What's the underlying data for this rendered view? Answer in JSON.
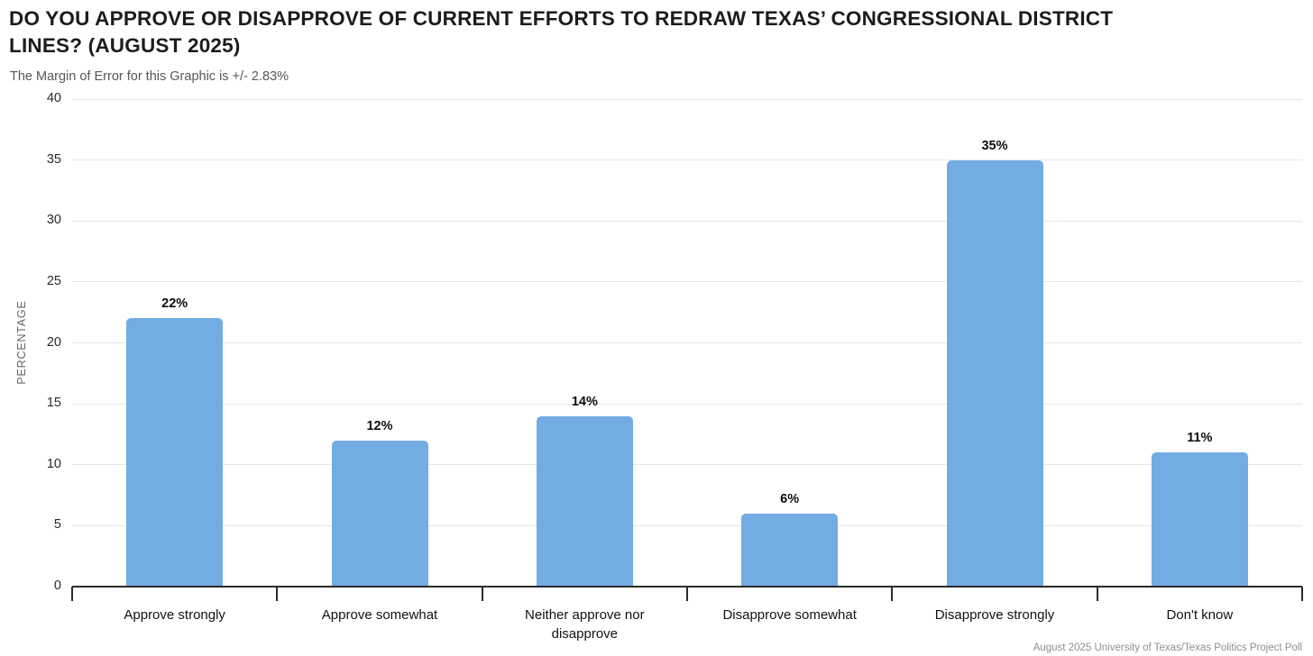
{
  "header": {
    "title": "DO YOU APPROVE OR DISAPPROVE OF CURRENT EFFORTS TO REDRAW TEXAS’ CONGRESSIONAL DISTRICT LINES? (AUGUST 2025)",
    "subtitle": "The Margin of Error for this Graphic is +/- 2.83%"
  },
  "footer": {
    "source": "August 2025 University of Texas/Texas Politics Project Poll"
  },
  "chart_data": {
    "type": "bar",
    "title": "DO YOU APPROVE OR DISAPPROVE OF CURRENT EFFORTS TO REDRAW TEXAS’ CONGRESSIONAL DISTRICT LINES? (AUGUST 2025)",
    "subtitle": "The Margin of Error for this Graphic is +/- 2.83%",
    "categories": [
      "Approve strongly",
      "Approve somewhat",
      "Neither approve nor disapprove",
      "Disapprove somewhat",
      "Disapprove strongly",
      "Don't know"
    ],
    "values": [
      22,
      12,
      14,
      6,
      35,
      11
    ],
    "value_labels": [
      "22%",
      "12%",
      "14%",
      "6%",
      "35%",
      "11%"
    ],
    "xlabel": "",
    "ylabel": "PERCENTAGE",
    "ylim": [
      0,
      40
    ],
    "yticks": [
      0,
      5,
      10,
      15,
      20,
      25,
      30,
      35,
      40
    ],
    "bar_color": "#73ace2",
    "grid": true,
    "legend": "none",
    "source": "August 2025 University of Texas/Texas Politics Project Poll"
  }
}
